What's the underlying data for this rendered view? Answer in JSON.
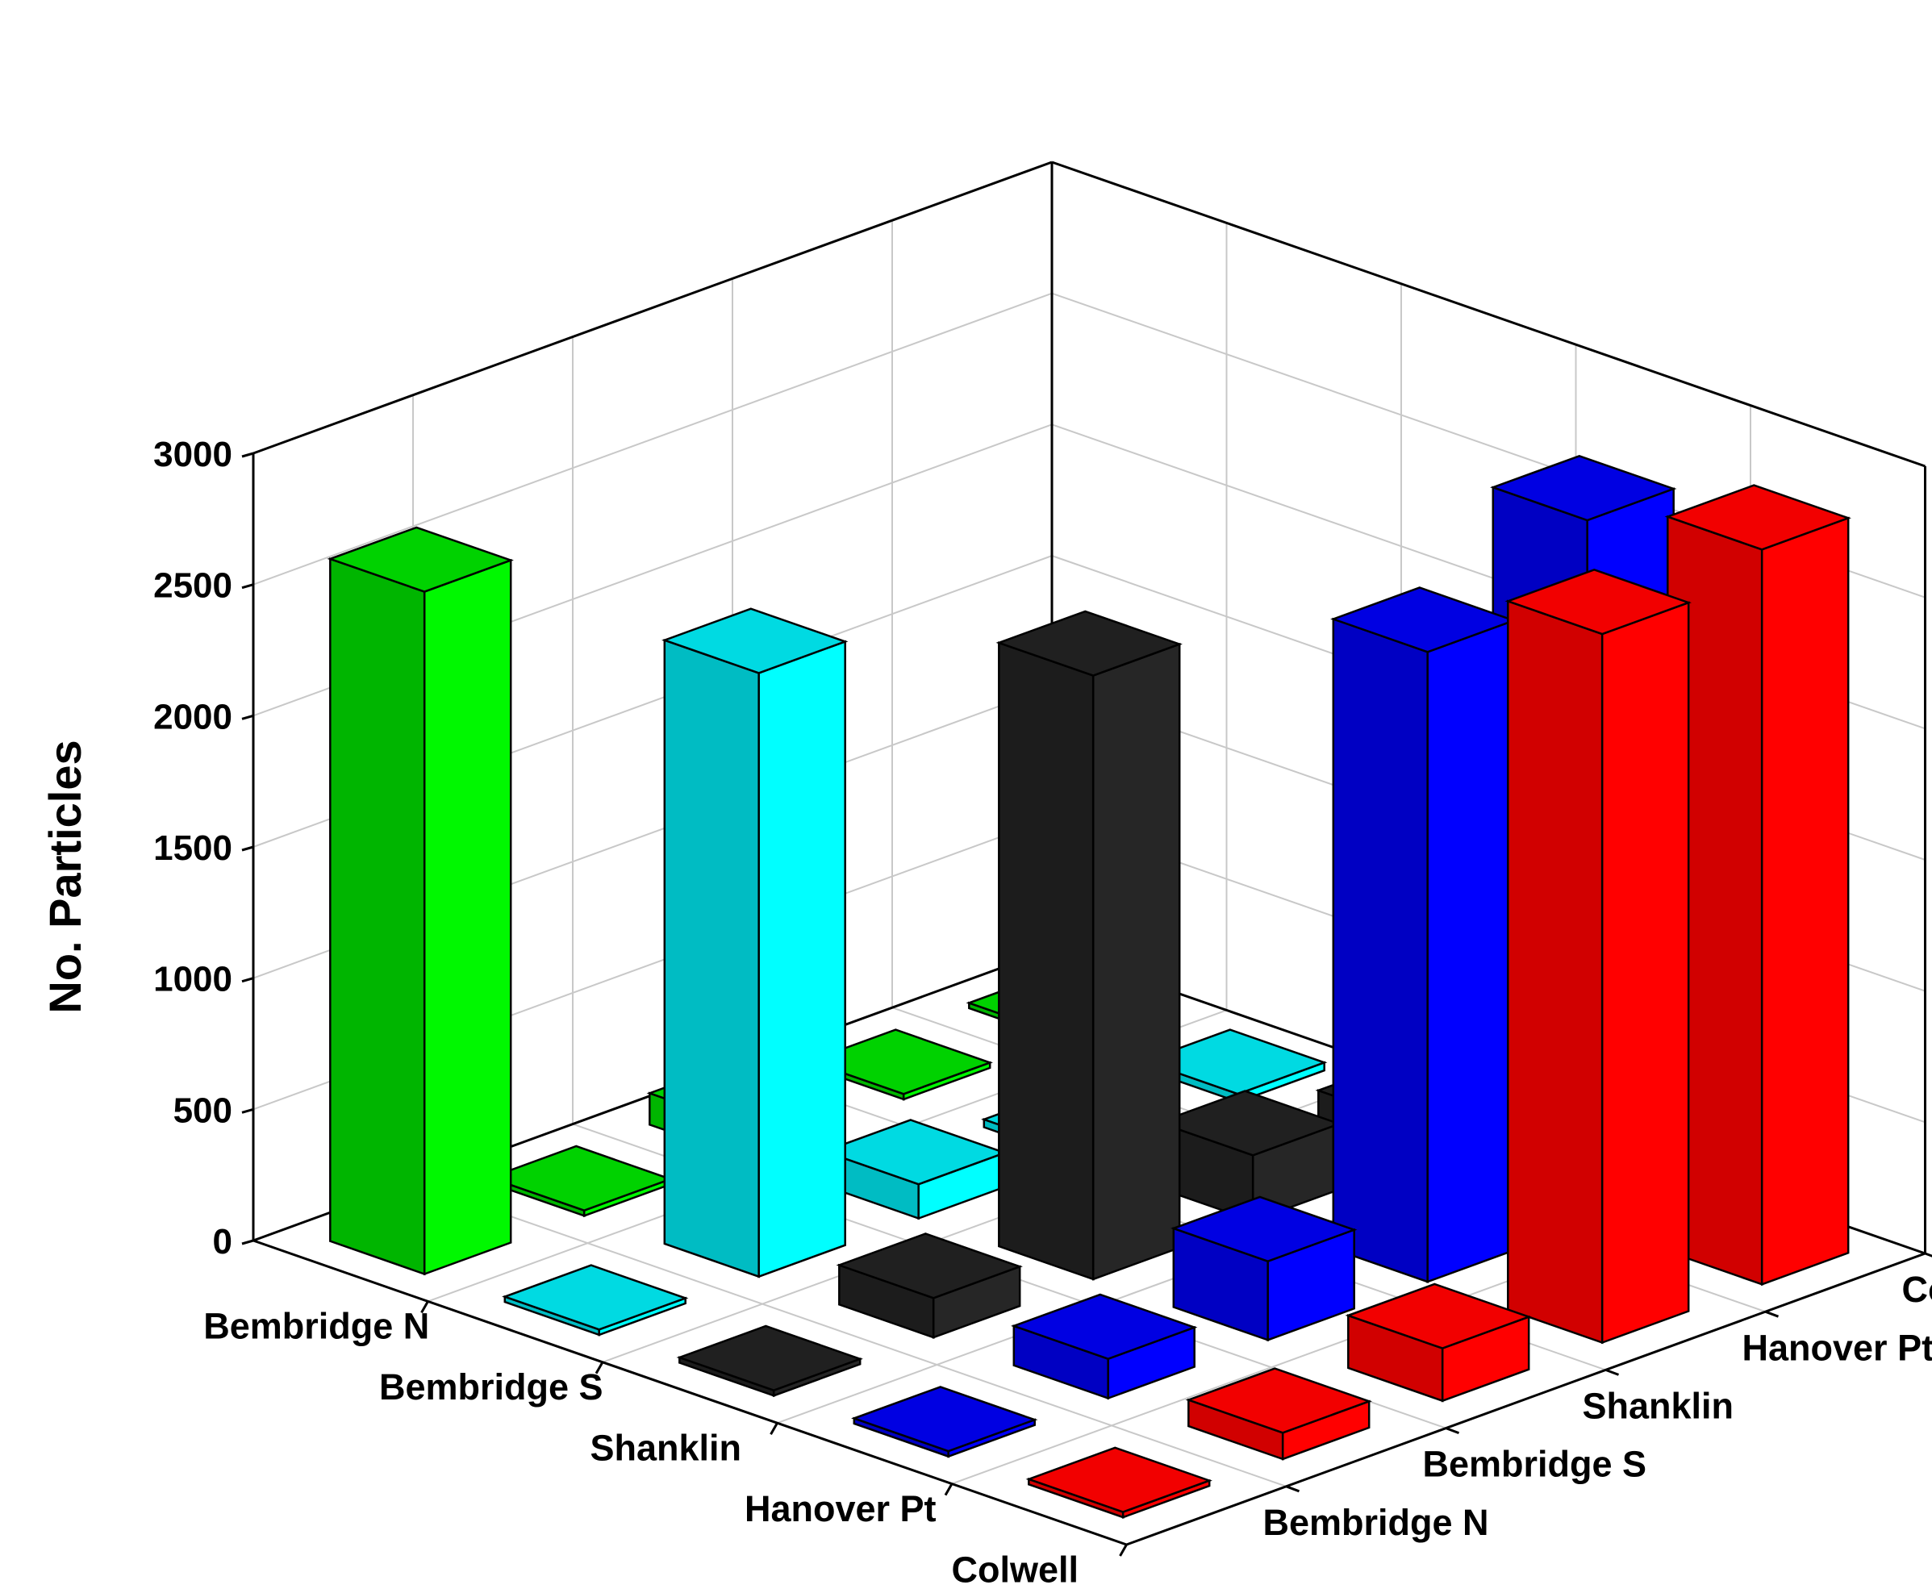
{
  "chart_data": {
    "type": "bar3d",
    "title": "",
    "zlabel": "No. Particles",
    "zlim": [
      0,
      3000
    ],
    "z_ticks": [
      0,
      500,
      1000,
      1500,
      2000,
      2500,
      3000
    ],
    "x_categories": [
      "Bembridge N",
      "Bembridge S",
      "Shanklin",
      "Hanover Pt",
      "Colwell"
    ],
    "y_categories": [
      "Bembridge N",
      "Bembridge S",
      "Shanklin",
      "Hanover Pt",
      "Colwell"
    ],
    "grid": true,
    "series_colors": [
      "#00dd00",
      "#00e5ee",
      "#222222",
      "#0000ee",
      "#ff0000"
    ],
    "values": [
      [
        20,
        30,
        150,
        2680,
        2800
      ],
      [
        20,
        30,
        250,
        2400,
        2700
      ],
      [
        120,
        130,
        2300,
        300,
        200
      ],
      [
        20,
        2300,
        150,
        150,
        100
      ],
      [
        2600,
        20,
        20,
        20,
        20
      ]
    ]
  }
}
